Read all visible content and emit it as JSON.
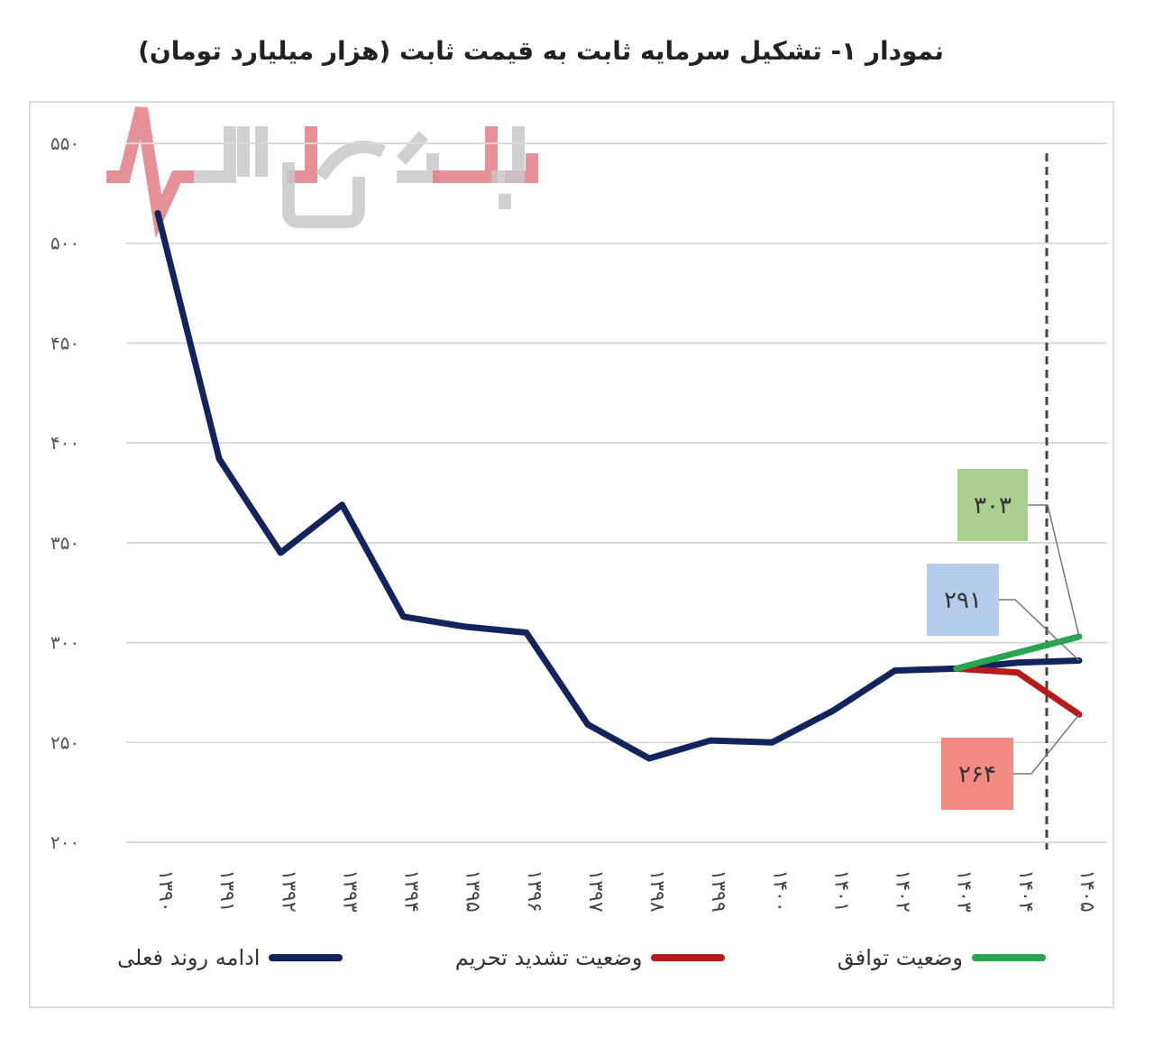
{
  "title": "نمودار ۱-  تشکیل سرمایه ثابت به قیمت ثابت (هزار میلیارد تومان)",
  "watermark": "بورس بازار",
  "colors": {
    "current_trend": "#13235b",
    "sanctions": "#b71c1c",
    "agreement": "#27a550",
    "label_green_bg": "#a9d08e",
    "label_blue_bg": "#b4cdea",
    "label_red_bg": "#f28b82",
    "grid": "#d9d9d9",
    "watermark_red": "#e27d86",
    "watermark_gray": "#c8c8c8"
  },
  "legend": [
    {
      "name": "ادامه روند فعلی",
      "color": "#13235b"
    },
    {
      "name": "وضعیت تشدید تحریم",
      "color": "#b71c1c"
    },
    {
      "name": "وضعیت توافق",
      "color": "#27a550"
    }
  ],
  "y_ticks": [
    "۵۵۰",
    "۵۰۰",
    "۴۵۰",
    "۴۰۰",
    "۳۵۰",
    "۳۰۰",
    "۲۵۰",
    "۲۰۰"
  ],
  "x_ticks": [
    "۱۳۹۰",
    "۱۳۹۱",
    "۱۳۹۲",
    "۱۳۹۳",
    "۱۳۹۴",
    "۱۳۹۵",
    "۱۳۹۶",
    "۱۳۹۷",
    "۱۳۹۸",
    "۱۳۹۹",
    "۱۴۰۰",
    "۱۴۰۱",
    "۱۴۰۲",
    "۱۴۰۳",
    "۱۴۰۴",
    "۱۴۰۵"
  ],
  "callouts": {
    "agreement": "۳۰۳",
    "current_trend": "۲۹۱",
    "sanctions": "۲۶۴"
  },
  "chart_data": {
    "type": "line",
    "title": "نمودار ۱- تشکیل سرمایه ثابت به قیمت ثابت (هزار میلیارد تومان)",
    "xlabel": "",
    "ylabel": "",
    "ylim": [
      200,
      550
    ],
    "yticks": [
      200,
      250,
      300,
      350,
      400,
      450,
      500,
      550
    ],
    "grid": true,
    "legend_position": "bottom",
    "categories": [
      "1390",
      "1391",
      "1392",
      "1393",
      "1394",
      "1395",
      "1396",
      "1397",
      "1398",
      "1399",
      "1400",
      "1401",
      "1402",
      "1403",
      "1404",
      "1405"
    ],
    "series": [
      {
        "name": "ادامه روند فعلی",
        "values": [
          515,
          392,
          345,
          369,
          313,
          308,
          305,
          259,
          242,
          251,
          250,
          266,
          286,
          287,
          290,
          291
        ]
      },
      {
        "name": "وضعیت تشدید تحریم",
        "values": [
          null,
          null,
          null,
          null,
          null,
          null,
          null,
          null,
          null,
          null,
          null,
          null,
          null,
          287,
          285,
          264
        ]
      },
      {
        "name": "وضعیت توافق",
        "values": [
          null,
          null,
          null,
          null,
          null,
          null,
          null,
          null,
          null,
          null,
          null,
          null,
          null,
          287,
          295,
          303
        ]
      }
    ],
    "annotations": [
      {
        "text": "۳۰۳",
        "x": "1405",
        "series": "وضعیت توافق"
      },
      {
        "text": "۲۹۱",
        "x": "1405",
        "series": "ادامه روند فعلی"
      },
      {
        "text": "۲۶۴",
        "x": "1405",
        "series": "وضعیت تشدید تحریم"
      },
      {
        "type": "vertical-dashed-line",
        "x_between": [
          "1404",
          "1405"
        ]
      }
    ]
  }
}
